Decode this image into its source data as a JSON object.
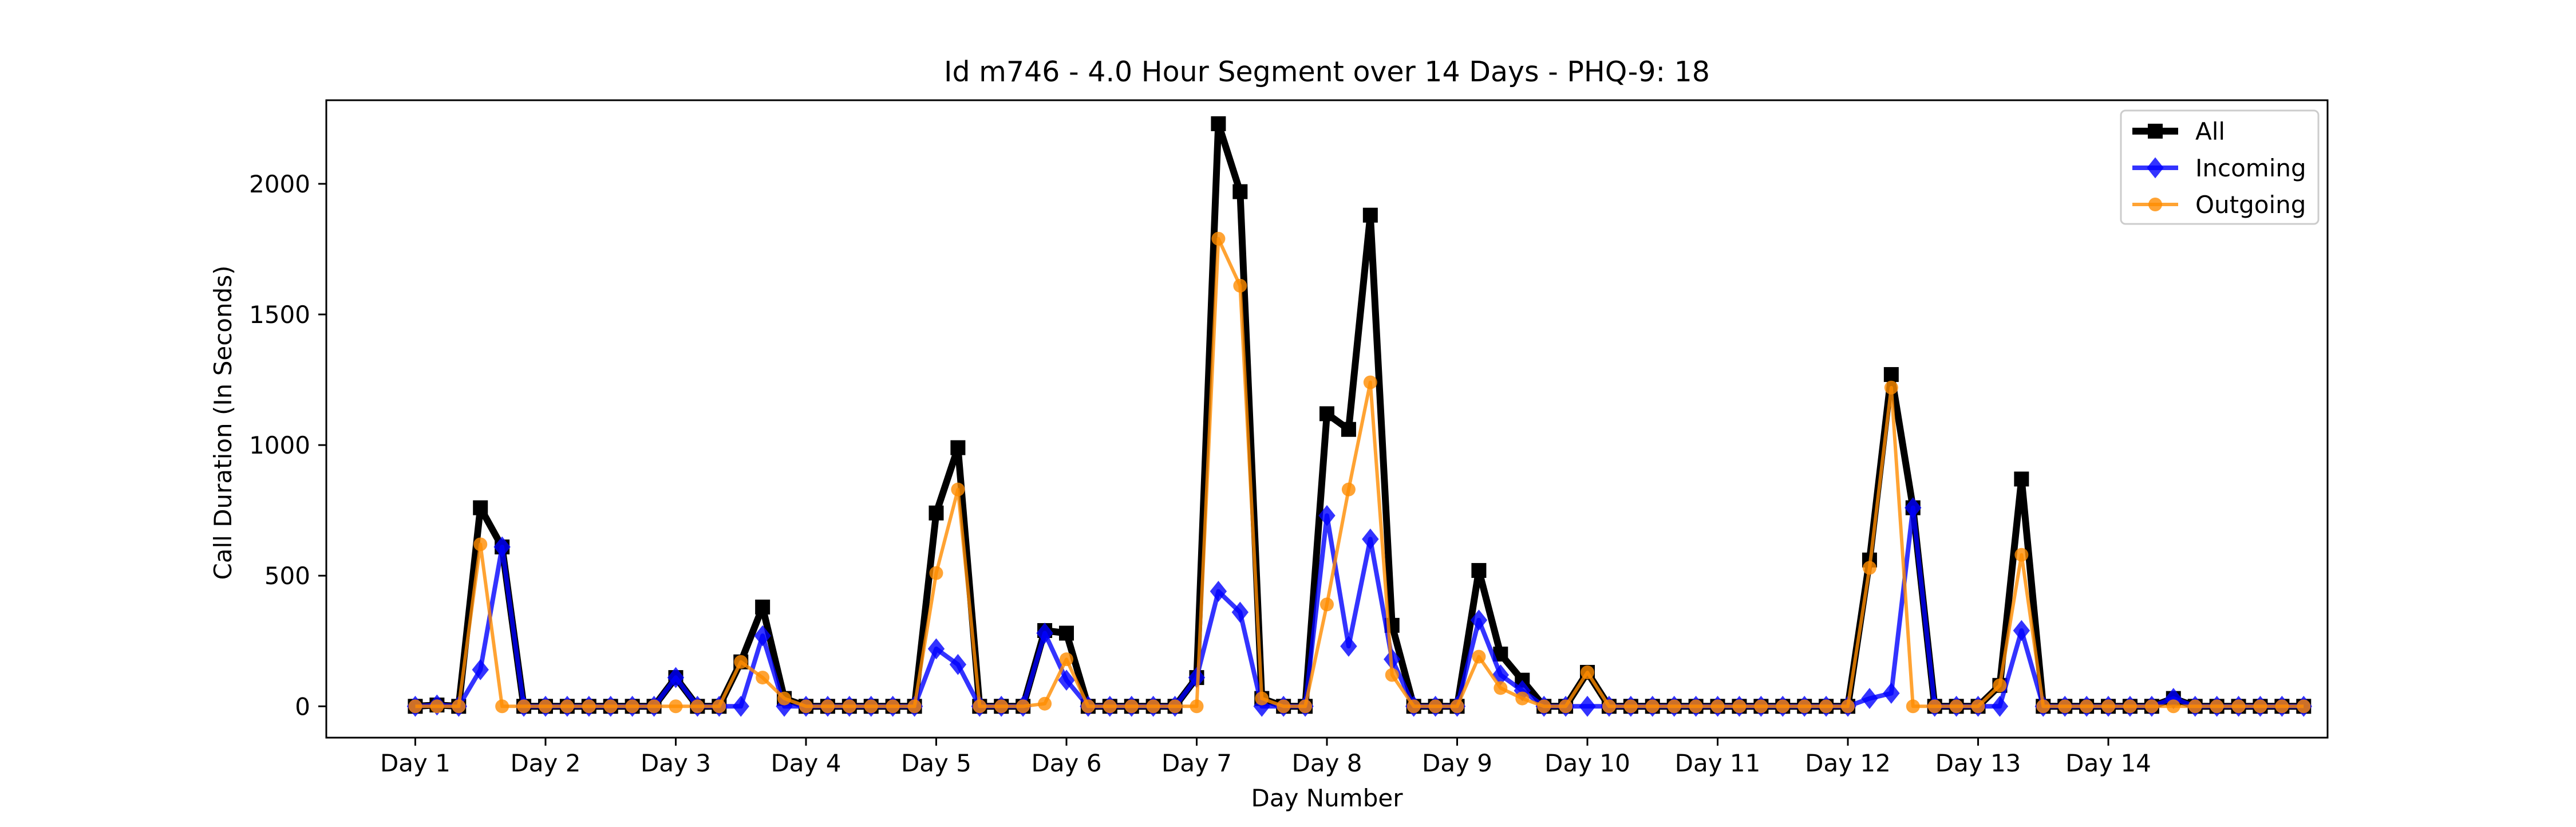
{
  "chart_data": {
    "type": "line",
    "title": "Id m746 - 4.0 Hour Segment over 14 Days - PHQ-9: 18",
    "xlabel": "Day Number",
    "ylabel": "Call Duration (In Seconds)",
    "ylim": [
      -120,
      2320
    ],
    "xlim": [
      -4.1,
      88.1
    ],
    "x_ticks": [
      {
        "x": 0,
        "label": "Day 1"
      },
      {
        "x": 6,
        "label": "Day 2"
      },
      {
        "x": 12,
        "label": "Day 3"
      },
      {
        "x": 18,
        "label": "Day 4"
      },
      {
        "x": 24,
        "label": "Day 5"
      },
      {
        "x": 30,
        "label": "Day 6"
      },
      {
        "x": 36,
        "label": "Day 7"
      },
      {
        "x": 42,
        "label": "Day 8"
      },
      {
        "x": 48,
        "label": "Day 9"
      },
      {
        "x": 54,
        "label": "Day 10"
      },
      {
        "x": 60,
        "label": "Day 11"
      },
      {
        "x": 66,
        "label": "Day 12"
      },
      {
        "x": 72,
        "label": "Day 13"
      },
      {
        "x": 78,
        "label": "Day 14"
      }
    ],
    "y_ticks": [
      0,
      500,
      1000,
      1500,
      2000
    ],
    "grid": false,
    "legend_position": "top-right",
    "series": [
      {
        "name": "All",
        "color": "#000000",
        "marker": "square",
        "values": [
          0,
          5,
          0,
          760,
          610,
          0,
          0,
          0,
          0,
          0,
          0,
          0,
          110,
          0,
          0,
          170,
          380,
          30,
          0,
          0,
          0,
          0,
          0,
          0,
          740,
          990,
          0,
          0,
          0,
          290,
          280,
          0,
          0,
          0,
          0,
          0,
          110,
          2230,
          1970,
          30,
          0,
          0,
          1120,
          1060,
          1880,
          310,
          0,
          0,
          0,
          520,
          200,
          100,
          0,
          0,
          130,
          0,
          0,
          0,
          0,
          0,
          0,
          0,
          0,
          0,
          0,
          0,
          0,
          560,
          1270,
          760,
          0,
          0,
          0,
          80,
          870,
          0,
          0,
          0,
          0,
          0,
          0,
          30,
          0,
          0,
          0,
          0,
          0,
          0
        ]
      },
      {
        "name": "Incoming",
        "color": "#0000ff",
        "marker": "diamond",
        "values": [
          0,
          5,
          0,
          140,
          610,
          0,
          0,
          0,
          0,
          0,
          0,
          0,
          110,
          0,
          0,
          0,
          270,
          0,
          0,
          0,
          0,
          0,
          0,
          0,
          220,
          160,
          0,
          0,
          0,
          280,
          100,
          0,
          0,
          0,
          0,
          0,
          110,
          440,
          360,
          0,
          0,
          0,
          730,
          230,
          640,
          180,
          0,
          0,
          0,
          330,
          120,
          60,
          0,
          0,
          0,
          0,
          0,
          0,
          0,
          0,
          0,
          0,
          0,
          0,
          0,
          0,
          0,
          30,
          50,
          760,
          0,
          0,
          0,
          0,
          290,
          0,
          0,
          0,
          0,
          0,
          0,
          30,
          0,
          0,
          0,
          0,
          0,
          0
        ]
      },
      {
        "name": "Outgoing",
        "color": "#ff8c00",
        "marker": "circle",
        "values": [
          0,
          0,
          0,
          620,
          0,
          0,
          0,
          0,
          0,
          0,
          0,
          0,
          0,
          0,
          0,
          170,
          110,
          30,
          0,
          0,
          0,
          0,
          0,
          0,
          510,
          830,
          0,
          0,
          0,
          10,
          180,
          0,
          0,
          0,
          0,
          0,
          0,
          1790,
          1610,
          30,
          0,
          0,
          390,
          830,
          1240,
          120,
          0,
          0,
          0,
          190,
          70,
          30,
          0,
          0,
          130,
          0,
          0,
          0,
          0,
          0,
          0,
          0,
          0,
          0,
          0,
          0,
          0,
          530,
          1220,
          0,
          0,
          0,
          0,
          80,
          580,
          0,
          0,
          0,
          0,
          0,
          0,
          0,
          0,
          0,
          0,
          0,
          0,
          0
        ]
      }
    ]
  }
}
